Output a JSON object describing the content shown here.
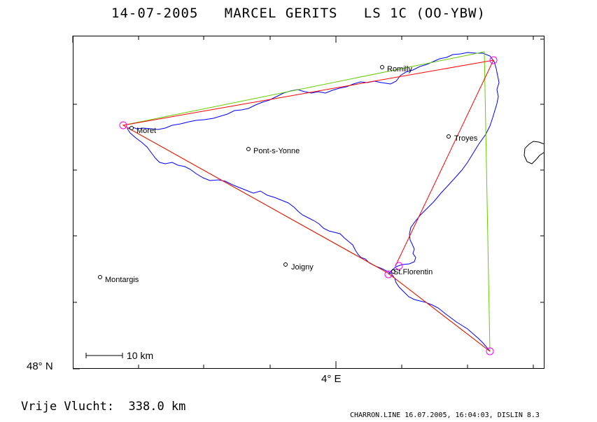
{
  "title": "14-07-2005   MARCEL GERITS   LS 1C (OO-YBW)",
  "axes": {
    "lat_label": "48° N",
    "lon_label": "4° E"
  },
  "scale_bar": {
    "label": "10 km"
  },
  "towns": [
    {
      "name": "Romilly"
    },
    {
      "name": "Moret"
    },
    {
      "name": "Troyes"
    },
    {
      "name": "Pont-s-Yonne"
    },
    {
      "name": "Joigny"
    },
    {
      "name": "St.Florentin"
    },
    {
      "name": "Montargis"
    }
  ],
  "distance": "Vrije Vlucht:  338.0 km",
  "footer": "CHARRON.LINE 16.07.2005, 16:04:03, DISLIN 8.3",
  "colors": {
    "track": "#0000ff",
    "declared_route": "#66cc00",
    "optimized_route": "#ff0000",
    "turnpoint": "#ff00ff"
  }
}
